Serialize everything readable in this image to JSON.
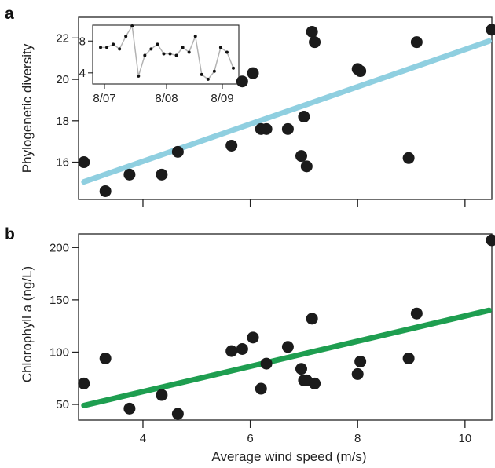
{
  "colors": {
    "fit_a": "#8fcfe0",
    "fit_b": "#1e9e50",
    "points": "#1b1b1b",
    "inset_line": "#b3b3b3",
    "inset_points": "#111111"
  },
  "chart_data": [
    {
      "panel": "a",
      "type": "scatter",
      "title": "",
      "xlabel": "",
      "ylabel": "Phylogenetic diversity",
      "xlim": [
        2.8,
        10.5
      ],
      "ylim": [
        14.2,
        23.0
      ],
      "xticks": [
        4,
        6,
        8,
        10
      ],
      "yticks": [
        16,
        18,
        20,
        22
      ],
      "x": [
        2.9,
        3.3,
        3.75,
        4.35,
        4.65,
        5.65,
        5.85,
        6.05,
        6.2,
        6.3,
        6.7,
        6.95,
        7.0,
        7.05,
        7.15,
        7.2,
        8.0,
        8.05,
        8.95,
        9.1,
        10.5
      ],
      "y": [
        16.0,
        14.6,
        15.4,
        15.4,
        16.5,
        16.8,
        19.9,
        20.3,
        17.6,
        17.6,
        17.6,
        16.3,
        18.2,
        15.8,
        22.3,
        21.8,
        20.5,
        20.4,
        16.2,
        21.8,
        22.4
      ],
      "fit": {
        "x": [
          2.9,
          10.45
        ],
        "y": [
          15.05,
          21.85
        ]
      },
      "inset": {
        "type": "line",
        "xticks": [
          "8/07",
          "8/08",
          "8/09"
        ],
        "yticks": [
          4,
          8
        ],
        "ylim": [
          2.6,
          10.0
        ],
        "values": [
          7.2,
          7.2,
          7.6,
          7.0,
          8.6,
          9.9,
          3.6,
          6.2,
          7.0,
          7.6,
          6.4,
          6.4,
          6.2,
          7.2,
          6.6,
          8.6,
          3.8,
          3.2,
          4.2,
          7.2,
          6.6,
          4.6
        ]
      }
    },
    {
      "panel": "b",
      "type": "scatter",
      "title": "",
      "xlabel": "Average wind speed (m/s)",
      "ylabel": "Chlorophyll a (ng/L)",
      "xlim": [
        2.8,
        10.5
      ],
      "ylim": [
        35,
        213
      ],
      "xticks": [
        4,
        6,
        8,
        10
      ],
      "yticks": [
        50,
        100,
        150,
        200
      ],
      "x": [
        2.9,
        3.3,
        3.75,
        4.35,
        4.65,
        5.65,
        5.85,
        6.05,
        6.2,
        6.3,
        6.7,
        6.95,
        7.0,
        7.05,
        7.15,
        7.2,
        8.0,
        8.05,
        8.95,
        9.1,
        10.5
      ],
      "y": [
        70,
        94,
        46,
        59,
        41,
        101,
        103,
        114,
        65,
        89,
        105,
        84,
        73,
        73,
        132,
        70,
        79,
        91,
        94,
        137,
        207
      ],
      "fit": {
        "x": [
          2.9,
          10.45
        ],
        "y": [
          49,
          140
        ]
      }
    }
  ],
  "labels": {
    "panel_a": "a",
    "panel_b": "b"
  }
}
